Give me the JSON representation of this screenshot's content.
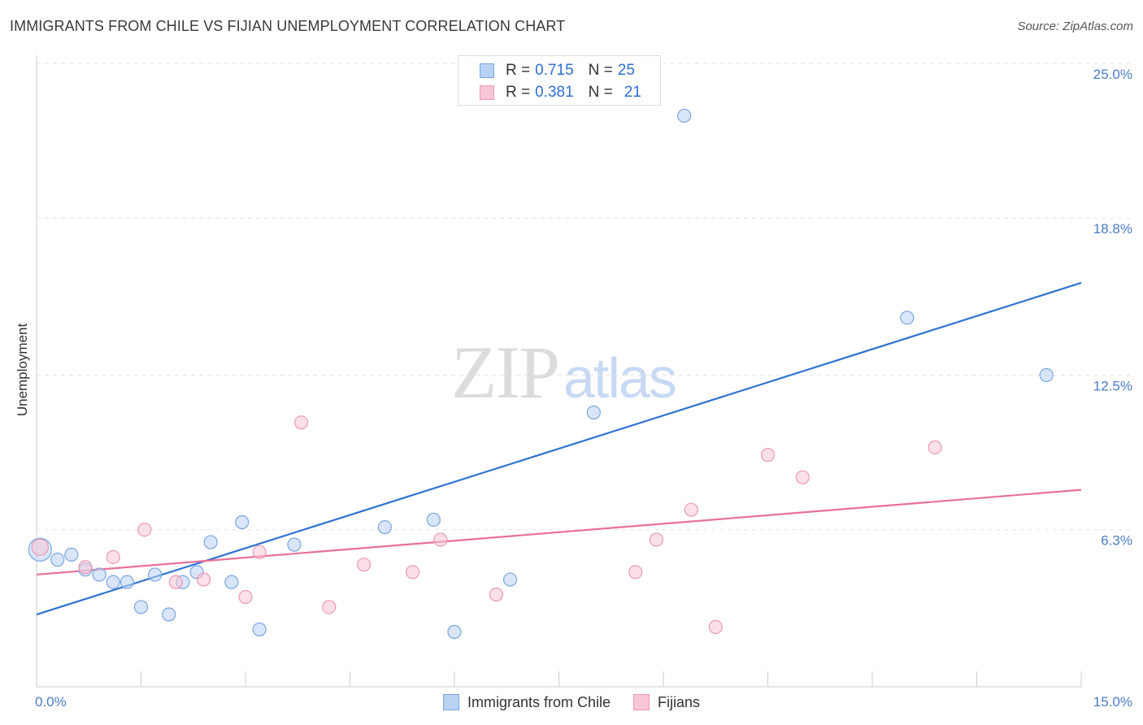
{
  "title": "IMMIGRANTS FROM CHILE VS FIJIAN UNEMPLOYMENT CORRELATION CHART",
  "source": "Source: ZipAtlas.com",
  "watermark": {
    "zip": "ZIP",
    "atlas": "atlas"
  },
  "colors": {
    "blue": "#2f73d2",
    "blue_fill": "#b9d2f4",
    "blue_stroke": "#7aa6e0",
    "pink": "#e8709a",
    "pink_fill": "#f8c6d6",
    "pink_stroke": "#ec98b4",
    "grid": "#e3e3e3",
    "tick": "#4a7cc8"
  },
  "legend_top": [
    {
      "r_label": "R =",
      "r_value": "0.715",
      "n_label": "N =",
      "n_value": "25"
    },
    {
      "r_label": "R =",
      "r_value": "0.381",
      "n_label": "N =",
      "n_value": "21"
    }
  ],
  "legend_bottom": [
    "Immigrants from Chile",
    "Fijians"
  ],
  "chart_data": {
    "type": "scatter",
    "title": "IMMIGRANTS FROM CHILE VS FIJIAN UNEMPLOYMENT CORRELATION CHART",
    "xlabel": "",
    "ylabel": "Unemployment",
    "xlim": [
      0,
      15
    ],
    "ylim": [
      0,
      25
    ],
    "x_tick_labels": [
      "0.0%",
      "15.0%"
    ],
    "y_ticks": [
      6.3,
      12.5,
      18.8,
      25.0
    ],
    "y_tick_labels": [
      "6.3%",
      "12.5%",
      "18.8%",
      "25.0%"
    ],
    "grid": true,
    "legend_position": "top-center",
    "series": [
      {
        "name": "Immigrants from Chile",
        "r": 0.715,
        "n": 25,
        "points": [
          [
            0.05,
            5.5
          ],
          [
            0.3,
            5.1
          ],
          [
            0.5,
            5.3
          ],
          [
            0.7,
            4.7
          ],
          [
            0.9,
            4.5
          ],
          [
            1.1,
            4.2
          ],
          [
            1.3,
            4.2
          ],
          [
            1.5,
            3.2
          ],
          [
            1.7,
            4.5
          ],
          [
            1.9,
            2.9
          ],
          [
            2.1,
            4.2
          ],
          [
            2.3,
            4.6
          ],
          [
            2.5,
            5.8
          ],
          [
            2.8,
            4.2
          ],
          [
            2.95,
            6.6
          ],
          [
            3.2,
            2.3
          ],
          [
            3.7,
            5.7
          ],
          [
            5.0,
            6.4
          ],
          [
            5.7,
            6.7
          ],
          [
            6.0,
            2.2
          ],
          [
            6.8,
            4.3
          ],
          [
            8.0,
            11.0
          ],
          [
            9.3,
            22.9
          ],
          [
            12.5,
            14.8
          ],
          [
            14.5,
            12.5
          ]
        ],
        "trend": [
          [
            0,
            2.9
          ],
          [
            15,
            16.2
          ]
        ]
      },
      {
        "name": "Fijians",
        "r": 0.381,
        "n": 21,
        "points": [
          [
            0.05,
            5.6
          ],
          [
            0.7,
            4.8
          ],
          [
            1.1,
            5.2
          ],
          [
            1.55,
            6.3
          ],
          [
            2.0,
            4.2
          ],
          [
            2.4,
            4.3
          ],
          [
            3.0,
            3.6
          ],
          [
            3.2,
            5.4
          ],
          [
            3.8,
            10.6
          ],
          [
            4.2,
            3.2
          ],
          [
            4.7,
            4.9
          ],
          [
            5.4,
            4.6
          ],
          [
            5.8,
            5.9
          ],
          [
            6.6,
            3.7
          ],
          [
            8.6,
            4.6
          ],
          [
            8.9,
            5.9
          ],
          [
            9.4,
            7.1
          ],
          [
            9.75,
            2.4
          ],
          [
            10.5,
            9.3
          ],
          [
            11.0,
            8.4
          ],
          [
            12.9,
            9.6
          ]
        ],
        "trend": [
          [
            0,
            4.5
          ],
          [
            15,
            7.9
          ]
        ]
      }
    ]
  }
}
